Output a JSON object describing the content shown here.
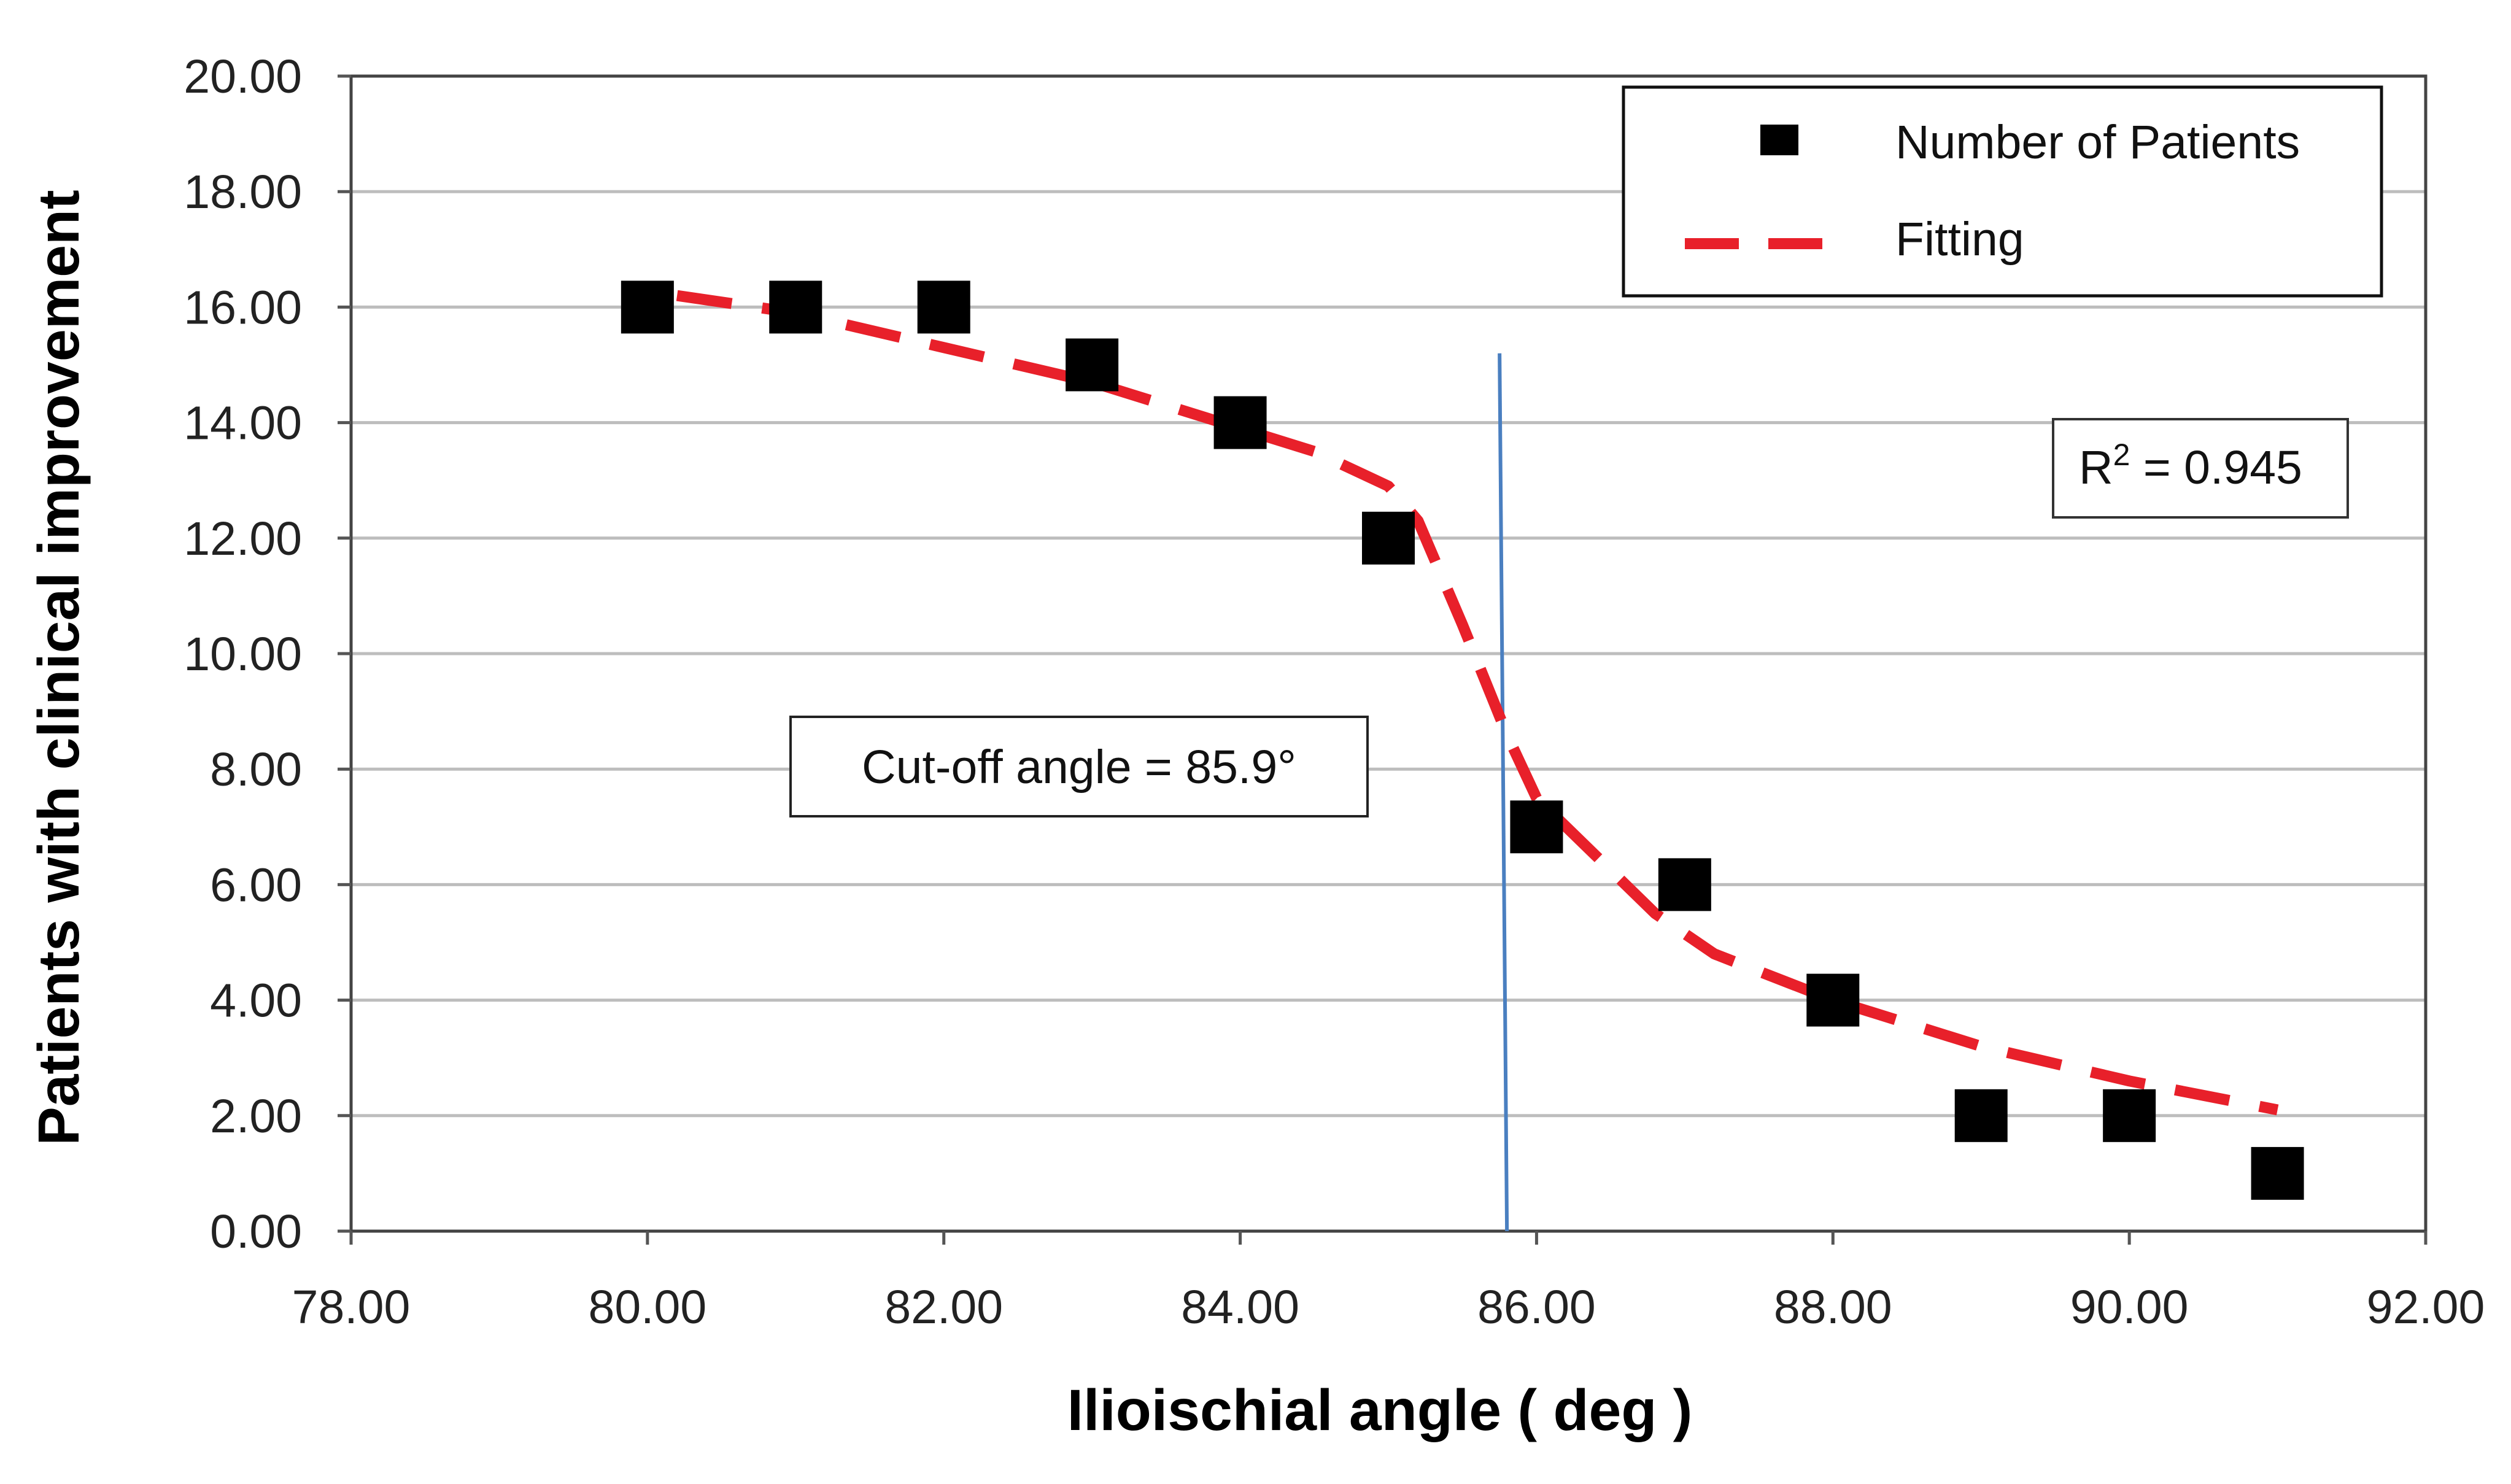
{
  "chart_data": {
    "type": "scatter",
    "xlabel": "Ilioischial angle ( deg )",
    "ylabel": "Patients with clinical improvement",
    "xlim": [
      78,
      92
    ],
    "ylim": [
      0,
      20
    ],
    "x_ticks": [
      "78.00",
      "80.00",
      "82.00",
      "84.00",
      "86.00",
      "88.00",
      "90.00",
      "92.00"
    ],
    "y_ticks": [
      "0.00",
      "2.00",
      "4.00",
      "6.00",
      "8.00",
      "10.00",
      "12.00",
      "14.00",
      "16.00",
      "18.00",
      "20.00"
    ],
    "grid": "horizontal",
    "legend_position": "top-right",
    "series": [
      {
        "name": "Number of Patients",
        "kind": "marker",
        "marker": "square",
        "color": "#000000",
        "x": [
          80,
          81,
          82,
          83,
          84,
          85,
          86,
          87,
          88,
          89,
          90,
          91
        ],
        "y": [
          16,
          16,
          16,
          15,
          14,
          12,
          7,
          6,
          4,
          2,
          2,
          1
        ]
      },
      {
        "name": "Fitting",
        "kind": "line",
        "style": "dashed",
        "color": "#e8202a",
        "x": [
          80.2,
          81,
          82,
          83,
          84,
          84.5,
          85,
          85.2,
          85.5,
          85.8,
          86,
          86.4,
          86.8,
          87.2,
          88,
          89,
          90,
          91
        ],
        "y": [
          16.2,
          15.9,
          15.3,
          14.7,
          13.9,
          13.5,
          12.9,
          12.3,
          10.5,
          8.6,
          7.5,
          6.5,
          5.5,
          4.8,
          4.0,
          3.2,
          2.6,
          2.1
        ]
      }
    ],
    "vertical_line": {
      "x": 85.8,
      "color": "#4a7fc0"
    },
    "annotations": [
      {
        "id": "cutoff",
        "text": "Cut-off angle = 85.9°"
      },
      {
        "id": "r2",
        "text_prefix": "R",
        "text_sup": "2",
        "text_suffix": " = 0.945"
      }
    ]
  }
}
